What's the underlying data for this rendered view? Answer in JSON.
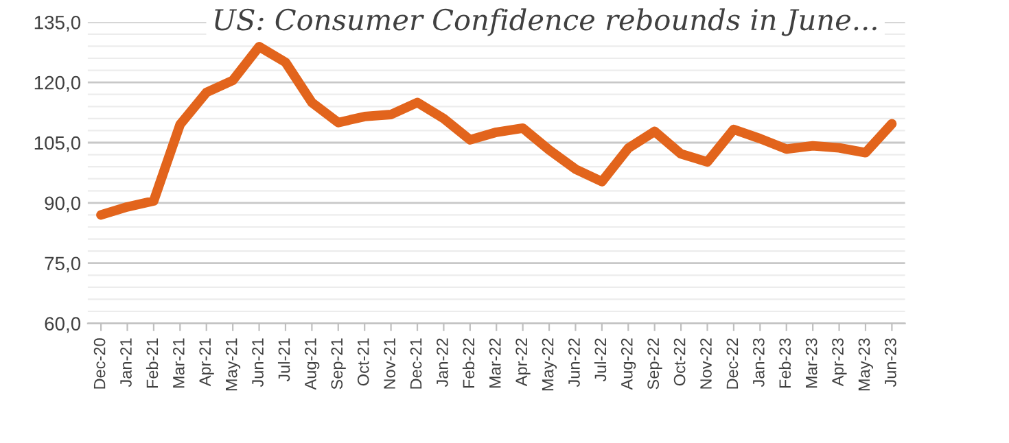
{
  "chart_data": {
    "type": "line",
    "title": "US: Consumer Confidence rebounds in June...",
    "categories": [
      "Dec-20",
      "Jan-21",
      "Feb-21",
      "Mar-21",
      "Apr-21",
      "May-21",
      "Jun-21",
      "Jul-21",
      "Aug-21",
      "Sep-21",
      "Oct-21",
      "Nov-21",
      "Dec-21",
      "Jan-22",
      "Feb-22",
      "Mar-22",
      "Apr-22",
      "May-22",
      "Jun-22",
      "Jul-22",
      "Aug-22",
      "Sep-22",
      "Oct-22",
      "Nov-22",
      "Dec-22",
      "Jan-23",
      "Feb-23",
      "Mar-23",
      "Apr-23",
      "May-23",
      "Jun-23"
    ],
    "series": [
      {
        "color": "#e2641c",
        "values": [
          87,
          89,
          90.5,
          109.5,
          117.5,
          120.5,
          128.9,
          125,
          115,
          110,
          111.5,
          112,
          115,
          111,
          105.7,
          107.6,
          108.6,
          103.2,
          98.4,
          95.3,
          103.6,
          107.8,
          102.2,
          100.2,
          108.3,
          106,
          103.4,
          104.2,
          103.7,
          102.5,
          109.7
        ]
      }
    ],
    "ylim": [
      60,
      135
    ],
    "yticks": [
      {
        "value": 60,
        "label": "60,0"
      },
      {
        "value": 75,
        "label": "75,0"
      },
      {
        "value": 90,
        "label": "90,0"
      },
      {
        "value": 105,
        "label": "105,0"
      },
      {
        "value": 120,
        "label": "120,0"
      },
      {
        "value": 135,
        "label": "135,0"
      }
    ],
    "grid": "y",
    "legend": false,
    "marker": "none",
    "line_style": "solid"
  }
}
